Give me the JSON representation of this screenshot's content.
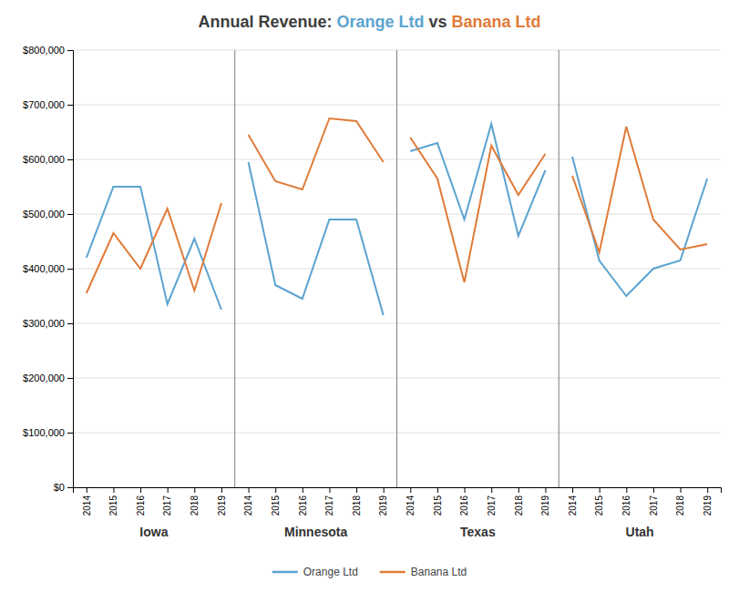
{
  "chart_data": {
    "type": "line",
    "title_parts": [
      {
        "text": "Annual Revenue: ",
        "color": "#3d3d3d"
      },
      {
        "text": "Orange Ltd",
        "color": "#5BA3D0"
      },
      {
        "text": " vs ",
        "color": "#3d3d3d"
      },
      {
        "text": "Banana Ltd",
        "color": "#E07B39"
      }
    ],
    "categories": [
      "2014",
      "2015",
      "2016",
      "2017",
      "2018",
      "2019",
      "2014",
      "2015",
      "2016",
      "2017",
      "2018",
      "2019",
      "2014",
      "2015",
      "2016",
      "2017",
      "2018",
      "2019",
      "2014",
      "2015",
      "2016",
      "2017",
      "2018",
      "2019"
    ],
    "regions": [
      "Iowa",
      "Minnesota",
      "Texas",
      "Utah"
    ],
    "series": [
      {
        "name": "Orange Ltd",
        "color": "#5BA3D0",
        "values": [
          420000,
          550000,
          550000,
          335000,
          455000,
          325000,
          595000,
          370000,
          345000,
          490000,
          490000,
          315000,
          615000,
          630000,
          490000,
          665000,
          460000,
          580000,
          605000,
          415000,
          350000,
          400000,
          415000,
          565000
        ]
      },
      {
        "name": "Banana Ltd",
        "color": "#E07B39",
        "values": [
          355000,
          465000,
          400000,
          510000,
          360000,
          520000,
          645000,
          560000,
          545000,
          675000,
          670000,
          595000,
          640000,
          565000,
          375000,
          625000,
          535000,
          610000,
          570000,
          430000,
          660000,
          490000,
          435000,
          445000
        ]
      }
    ],
    "ylim": [
      0,
      800000
    ],
    "yticks": [
      {
        "value": 0,
        "label": "$0"
      },
      {
        "value": 100000,
        "label": "$100,000"
      },
      {
        "value": 200000,
        "label": "$200,000"
      },
      {
        "value": 300000,
        "label": "$300,000"
      },
      {
        "value": 400000,
        "label": "$400,000"
      },
      {
        "value": 500000,
        "label": "$500,000"
      },
      {
        "value": 600000,
        "label": "$600,000"
      },
      {
        "value": 700000,
        "label": "$700,000"
      },
      {
        "value": 800000,
        "label": "$800,000"
      }
    ],
    "grid": true,
    "legend": "bottom"
  }
}
